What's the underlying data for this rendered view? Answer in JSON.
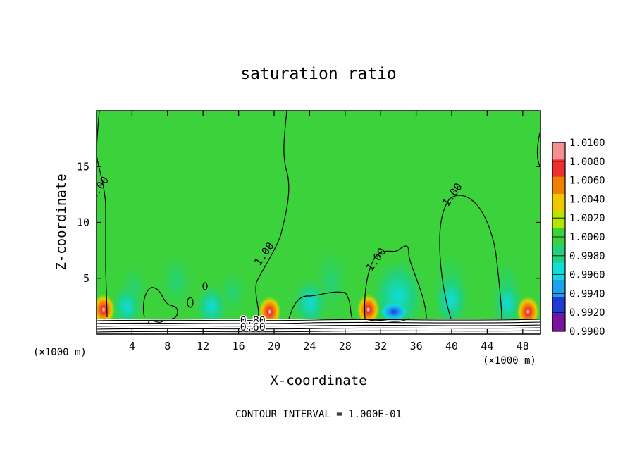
{
  "chart_data": {
    "type": "heatmap",
    "title": "saturation ratio",
    "xlabel": "X-coordinate",
    "ylabel": "Z-coordinate",
    "x_unit_left": "(×1000 m)",
    "x_unit_right": "(×1000 m)",
    "xlim": [
      0,
      50
    ],
    "ylim": [
      0,
      20
    ],
    "xticks": [
      4,
      8,
      12,
      16,
      20,
      24,
      28,
      32,
      36,
      40,
      44,
      48
    ],
    "yticks": [
      5,
      10,
      15
    ],
    "grid": false,
    "colorbar": {
      "labels": [
        "1.0100",
        "1.0080",
        "1.0060",
        "1.0040",
        "1.0020",
        "1.0000",
        "0.9980",
        "0.9960",
        "0.9940",
        "0.9920",
        "0.9900"
      ],
      "colors": [
        "#f49090",
        "#f03030",
        "#f08000",
        "#f0c800",
        "#b4e600",
        "#3cd23c",
        "#20d27e",
        "#10dcdc",
        "#1ea0f0",
        "#1e3cd2",
        "#7814a0"
      ]
    },
    "contour_labels": [
      {
        "text": "1.00",
        "x": 0.6,
        "z": 12.9
      },
      {
        "text": "1.00",
        "x": 19.2,
        "z": 7.0
      },
      {
        "text": "1.00",
        "x": 31.8,
        "z": 6.5
      },
      {
        "text": "1.00",
        "x": 40.4,
        "z": 12.3
      },
      {
        "text": "0.80",
        "x": 17.6,
        "z": 0.9
      },
      {
        "text": "0.60",
        "x": 17.6,
        "z": 0.3
      }
    ],
    "contour_interval_text": "CONTOUR INTERVAL = 1.000E-01",
    "hotspots": [
      {
        "x": 0.8,
        "z": 2.2,
        "level": "high"
      },
      {
        "x": 19.5,
        "z": 2.0,
        "level": "high"
      },
      {
        "x": 30.6,
        "z": 2.2,
        "level": "high"
      },
      {
        "x": 48.6,
        "z": 2.0,
        "level": "high"
      },
      {
        "x": 33.5,
        "z": 2.0,
        "level": "low"
      }
    ]
  }
}
